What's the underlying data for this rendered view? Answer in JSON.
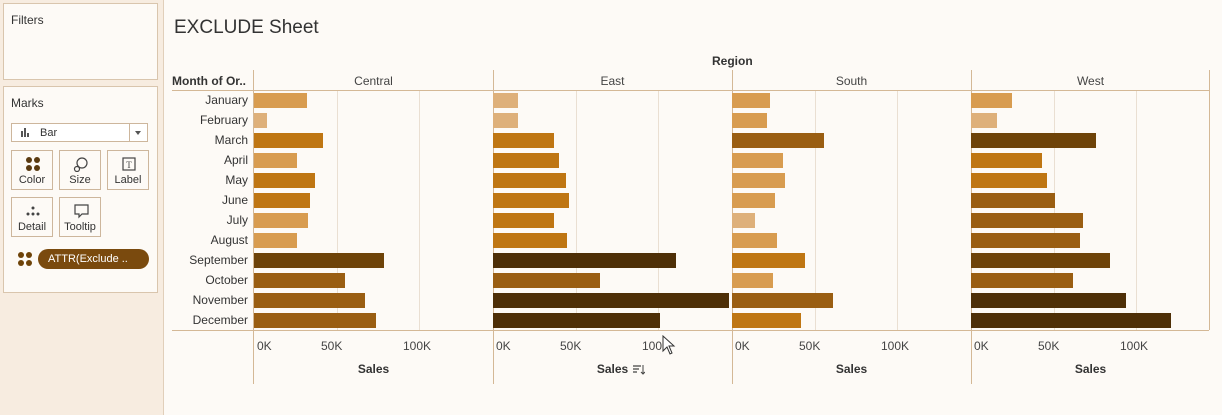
{
  "left_panel": {
    "filters_title": "Filters",
    "marks_title": "Marks",
    "mark_type": "Bar",
    "buttons": {
      "color": "Color",
      "size": "Size",
      "label": "Label",
      "detail": "Detail",
      "tooltip": "Tooltip"
    },
    "pill": "ATTR(Exclude .."
  },
  "sheet": {
    "title": "EXCLUDE Sheet",
    "column_group": "Region",
    "row_header": "Month of Or..",
    "axis_label": "Sales"
  },
  "chart_data": {
    "type": "bar",
    "orientation": "horizontal",
    "axis_label": "Sales",
    "tick_labels": [
      "0K",
      "50K",
      "100K"
    ],
    "xlim": [
      0,
      140000
    ],
    "grid": true,
    "categories": [
      "January",
      "February",
      "March",
      "April",
      "May",
      "June",
      "July",
      "August",
      "September",
      "October",
      "November",
      "December"
    ],
    "panels": [
      {
        "region": "Central",
        "values": [
          32000,
          8000,
          42000,
          26000,
          37000,
          34000,
          33000,
          26000,
          79000,
          55000,
          67000,
          74000
        ]
      },
      {
        "region": "East",
        "values": [
          15000,
          15000,
          37000,
          40000,
          44000,
          46000,
          37000,
          45000,
          111000,
          65000,
          143000,
          101000
        ]
      },
      {
        "region": "South",
        "values": [
          23000,
          21000,
          56000,
          31000,
          32000,
          26000,
          14000,
          27000,
          44000,
          25000,
          61000,
          42000
        ]
      },
      {
        "region": "West",
        "values": [
          25000,
          16000,
          76000,
          43000,
          46000,
          51000,
          68000,
          66000,
          84000,
          62000,
          94000,
          121000
        ]
      }
    ],
    "colors": {
      "light": "#deb07a",
      "mid": "#d89c50",
      "orange": "#bf7613",
      "brown": "#9a5e12",
      "dark": "#6e4309",
      "darkest": "#4e2f07"
    }
  }
}
